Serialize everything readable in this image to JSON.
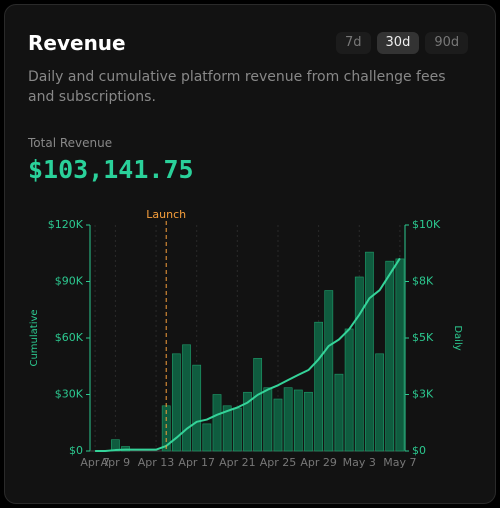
{
  "card": {
    "title": "Revenue",
    "ranges": [
      "7d",
      "30d",
      "90d"
    ],
    "active_range": "30d",
    "description": "Daily and cumulative platform revenue from challenge fees and subscriptions.",
    "total_label": "Total Revenue",
    "total_value": "$103,141.75"
  },
  "chart_data": {
    "type": "combo",
    "categories": [
      "Apr 7",
      null,
      "Apr 9",
      null,
      null,
      null,
      "Apr 13",
      null,
      null,
      null,
      "Apr 17",
      null,
      null,
      null,
      "Apr 21",
      null,
      null,
      null,
      "Apr 25",
      null,
      null,
      null,
      "Apr 29",
      null,
      null,
      null,
      "May 3",
      null,
      null,
      null,
      "May 7"
    ],
    "series": [
      {
        "type": "bar",
        "axis": "y2",
        "color": "#0f5c3f",
        "edge": "#1f9d6b",
        "values": [
          0,
          0,
          500,
          200,
          0,
          0,
          0,
          2000,
          4300,
          4700,
          3800,
          1200,
          2500,
          2000,
          1900,
          2600,
          4100,
          2800,
          2300,
          2800,
          2700,
          2600,
          5700,
          7100,
          3400,
          5400,
          7700,
          8800,
          4300,
          8400,
          8500
        ]
      },
      {
        "type": "line",
        "axis": "y",
        "color": "#34d399",
        "values": [
          0,
          0,
          500,
          700,
          700,
          700,
          700,
          2700,
          7000,
          11700,
          15500,
          16700,
          19200,
          21200,
          23100,
          25700,
          29800,
          32600,
          34900,
          37700,
          40400,
          43000,
          48700,
          55800,
          59200,
          64600,
          72300,
          81100,
          85400,
          93800,
          102300
        ]
      }
    ],
    "ylabel": "Cumulative",
    "y2label": "Daily",
    "ylim": [
      0,
      120000
    ],
    "yticks": [
      {
        "value": 0,
        "label": "$0"
      },
      {
        "value": 30000,
        "label": "$30K"
      },
      {
        "value": 60000,
        "label": "$60K"
      },
      {
        "value": 90000,
        "label": "$90K"
      },
      {
        "value": 120000,
        "label": "$120K"
      }
    ],
    "y2lim": [
      0,
      10000
    ],
    "y2ticks": [
      {
        "value": 0,
        "label": "$0"
      },
      {
        "value": 2500,
        "label": "$3K"
      },
      {
        "value": 5000,
        "label": "$5K"
      },
      {
        "value": 7500,
        "label": "$8K"
      },
      {
        "value": 10000,
        "label": "$10K"
      }
    ],
    "axis_color": "#2cc990",
    "annotations": [
      {
        "text": "Launch",
        "x": 7,
        "color": "#f59e3b"
      }
    ],
    "grid": true
  }
}
